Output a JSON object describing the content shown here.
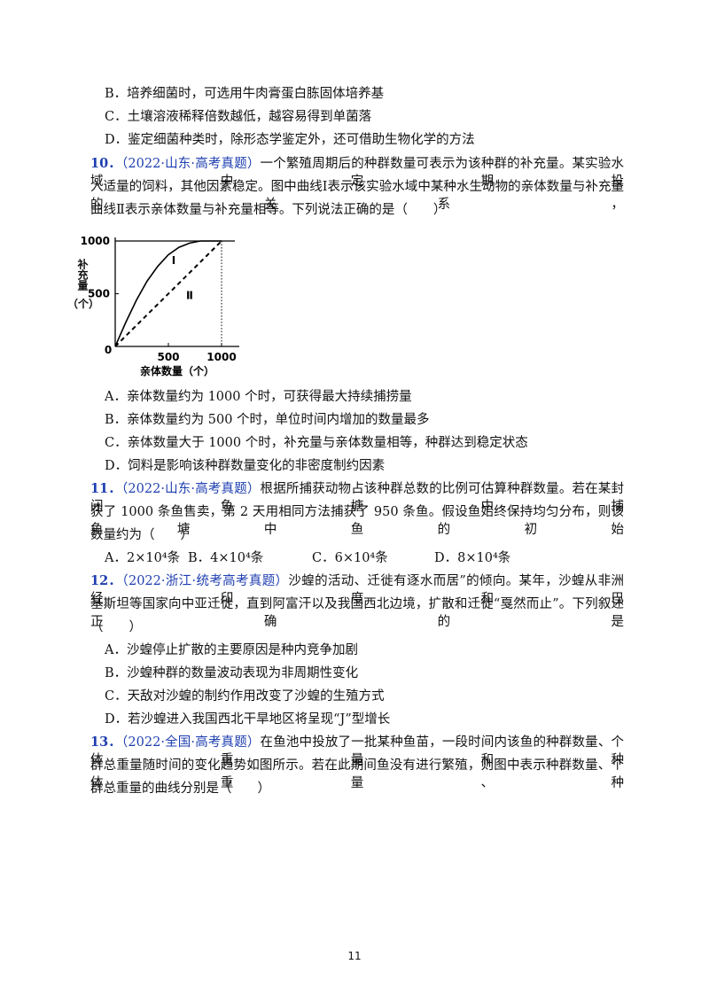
{
  "q9_options": [
    "B．培养细菌时，可选用牛肉膏蛋白胨固体培养基",
    "C．土壤溶液稀释倍数越低，越容易得到单菌落",
    "D．鉴定细菌种类时，除形态学鉴定外，还可借助生物化学的方法"
  ],
  "questions": [
    {
      "number": "10．",
      "source": "（2022·山东·高考真题）",
      "stem": [
        "一个繁殖周期后的种群数量可表示为该种群的补充量。某实验水域中定期投",
        "入适量的饲料，其他因素稳定。图中曲线Ⅰ表示该实验水域中某种水生动物的亲体数量与补充量的关系，",
        "曲线Ⅱ表示亲体数量与补充量相等。下列说法正确的是（　　）"
      ],
      "figure": {
        "ylabel": "补充量",
        "yunit": "（个）",
        "xlabel": "亲体数量（个）",
        "origin": "0",
        "xlim": [
          0,
          1000
        ],
        "ylim": [
          0,
          1000
        ],
        "xticks": [
          500,
          1000
        ],
        "yticks": [
          500,
          1000
        ],
        "series": [
          {
            "name": "Ⅰ",
            "x": [
              0,
              100,
              200,
              300,
              400,
              500,
              600,
              700,
              800,
              1000
            ],
            "values": [
              0,
              230,
              440,
              620,
              760,
              870,
              940,
              980,
              1000,
              1000
            ]
          },
          {
            "name": "Ⅱ",
            "x": [
              0,
              1000
            ],
            "values": [
              0,
              1000
            ]
          }
        ]
      },
      "options": [
        "A．亲体数量约为 1000 个时，可获得最大持续捕捞量",
        "B．亲体数量约为 500 个时，单位时间内增加的数量最多",
        "C．亲体数量大于 1000 个时，补充量与亲体数量相等，种群达到稳定状态",
        "D．饲料是影响该种群数量变化的非密度制约因素"
      ]
    },
    {
      "number": "11．",
      "source": "（2022·山东·高考真题）",
      "stem": [
        "根据所捕获动物占该种群总数的比例可估算种群数量。若在某封闭鱼塘中捕",
        "获了 1000 条鱼售卖，第 2 天用相同方法捕获了 950 条鱼。假设鱼始终保持均匀分布，则该鱼塘中鱼的初始",
        "数量约为（　　）"
      ],
      "options": [
        "A．2×10⁴条",
        "B．4×10⁴条",
        "C．6×10⁴条",
        "D．8×10⁴条"
      ]
    },
    {
      "number": "12．",
      "source": "（2022·浙江·统考高考真题）",
      "stem": [
        "沙蝗的活动、迁徙有逐水而居”的倾向。某年，沙蝗从非洲经印度和巴",
        "基斯坦等国家向中亚迁徙，直到阿富汗以及我国西北边境，扩散和迁徙“戛然而止”。下列叙述正确的是",
        "（　　）"
      ],
      "options": [
        "A．沙蝗停止扩散的主要原因是种内竞争加剧",
        "B．沙蝗种群的数量波动表现为非周期性变化",
        "C．天敌对沙蝗的制约作用改变了沙蝗的生殖方式",
        "D．若沙蝗进入我国西北干旱地区将呈现“J”型增长"
      ]
    },
    {
      "number": "13．",
      "source": "（2022·全国·高考真题）",
      "stem": [
        "在鱼池中投放了一批某种鱼苗，一段时间内该鱼的种群数量、个体重量和种",
        "群总重量随时间的变化趋势如图所示。若在此期间鱼没有进行繁殖，则图中表示种群数量、个体重量、种",
        "群总重量的曲线分别是（　　）"
      ]
    }
  ],
  "page_number": "11"
}
